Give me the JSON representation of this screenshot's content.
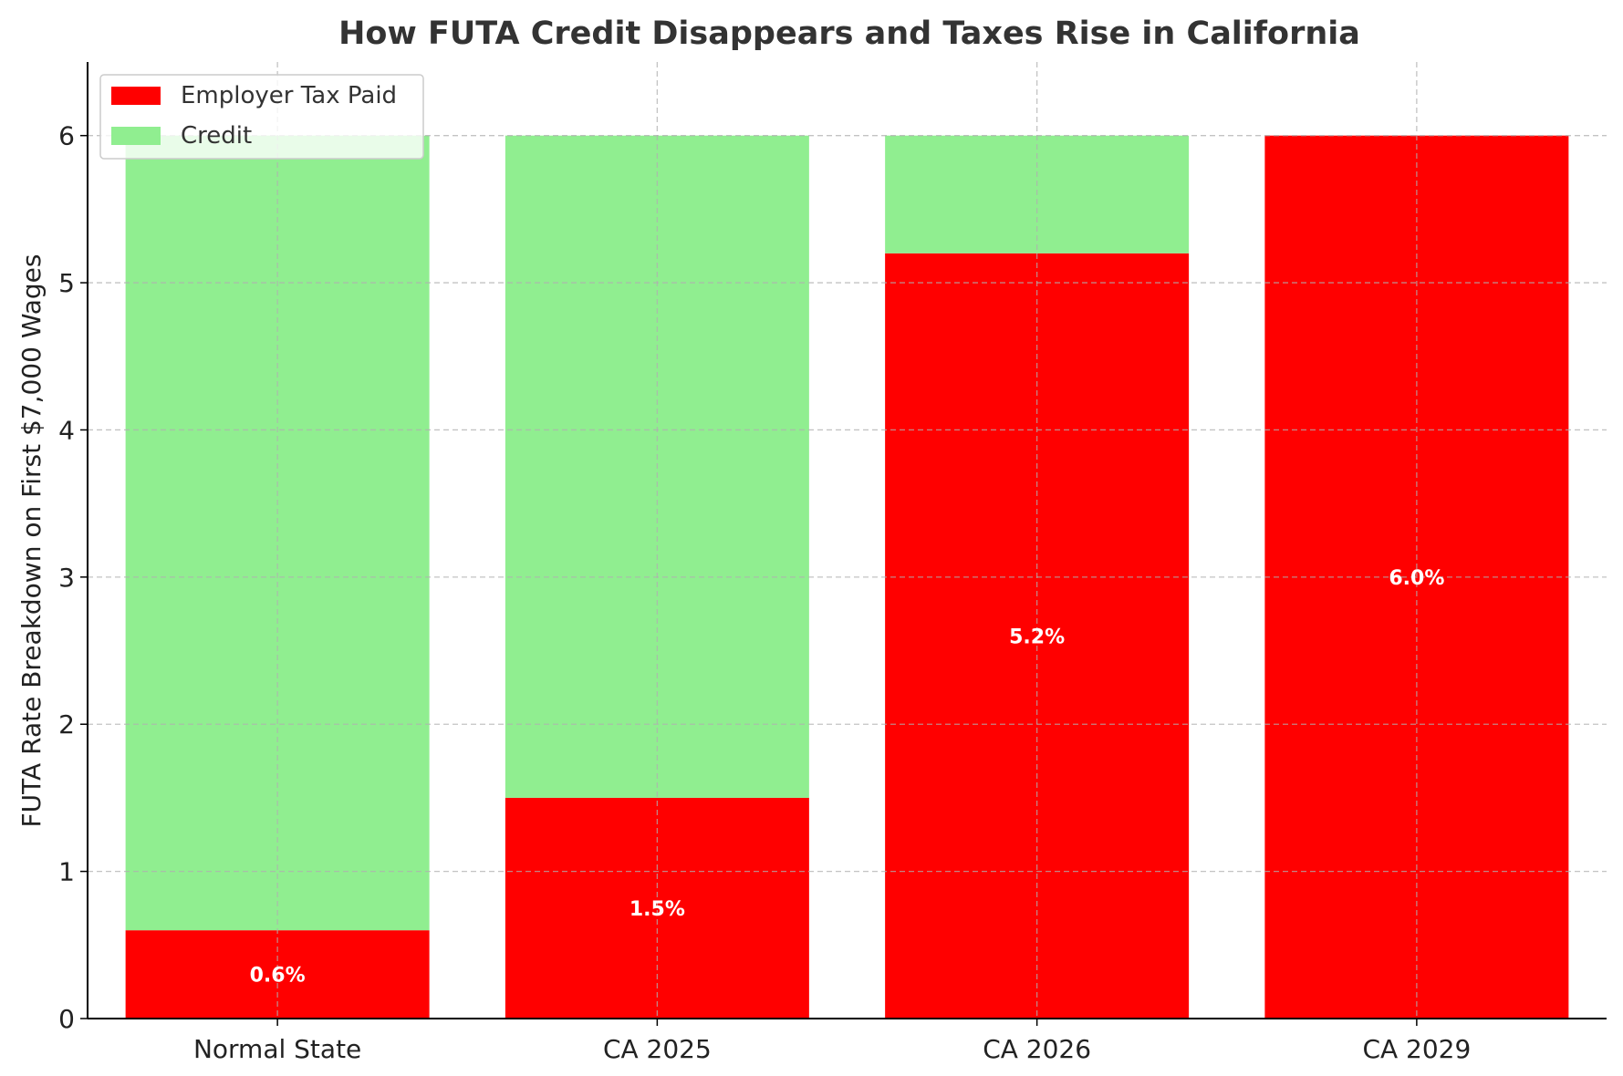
{
  "chart_data": {
    "type": "bar",
    "stacked": true,
    "title": "How FUTA Credit Disappears and Taxes Rise in California",
    "xlabel": "",
    "ylabel": "FUTA Rate Breakdown on First $7,000 Wages",
    "categories": [
      "Normal State",
      "CA 2025",
      "CA 2026",
      "CA 2029"
    ],
    "series": [
      {
        "name": "Employer Tax Paid",
        "color": "#ff0000",
        "values": [
          0.6,
          1.5,
          5.2,
          6.0
        ]
      },
      {
        "name": "Credit",
        "color": "#90ee90",
        "values": [
          5.4,
          4.5,
          0.8,
          0.0
        ]
      }
    ],
    "bar_labels": [
      "0.6%",
      "1.5%",
      "5.2%",
      "6.0%"
    ],
    "ylim": [
      0,
      6.5
    ],
    "yticks": [
      0,
      1,
      2,
      3,
      4,
      5,
      6
    ],
    "ytick_labels": [
      "0",
      "1",
      "2",
      "3",
      "4",
      "5",
      "6"
    ],
    "grid": true,
    "legend_position": "top-left"
  }
}
